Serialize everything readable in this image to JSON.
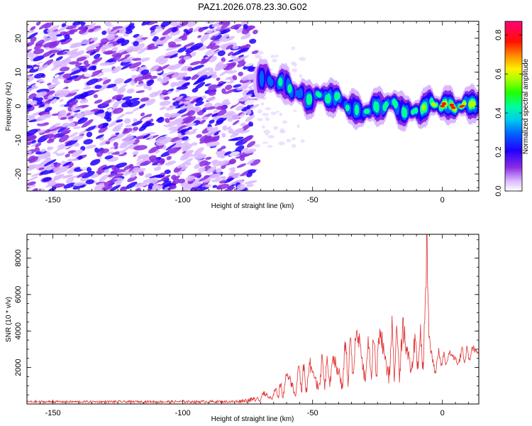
{
  "figure_title": "PAZ1.2026.078.23.30.G02",
  "chart_data": [
    {
      "type": "heatmap",
      "title": "PAZ1.2026.078.23.30.G02",
      "xlabel": "Height of straight line (km)",
      "ylabel": "Frequency (Hz)",
      "xlim": [
        -160,
        14
      ],
      "ylim": [
        -25,
        25
      ],
      "x_ticks": [
        -150,
        -100,
        -50,
        0
      ],
      "y_ticks": [
        -20,
        -10,
        0,
        10,
        20
      ],
      "colorbar": {
        "label": "Normalized spectral amplitude",
        "range": [
          0,
          0.87
        ],
        "ticks": [
          "0.0",
          "0.2",
          "0.4",
          "0.6",
          "0.8"
        ],
        "colormap": "white-violet-blue-cyan-green-yellow-red-magenta"
      },
      "noise_region_x": [
        -160,
        -72
      ],
      "signal_ridge": {
        "x": [
          -72,
          -68,
          -64,
          -60,
          -56,
          -52,
          -48,
          -44,
          -40,
          -36,
          -32,
          -28,
          -24,
          -20,
          -16,
          -12,
          -8,
          -4,
          0,
          4,
          8,
          12,
          14
        ],
        "freq": [
          8,
          8,
          7,
          6,
          4,
          2,
          3,
          3,
          2,
          0,
          -2,
          -1,
          0,
          1,
          -1,
          -2,
          -1,
          1,
          0,
          0,
          0,
          1,
          1
        ],
        "amplitude": [
          0.3,
          0.35,
          0.4,
          0.45,
          0.4,
          0.45,
          0.5,
          0.55,
          0.5,
          0.45,
          0.45,
          0.5,
          0.5,
          0.55,
          0.5,
          0.5,
          0.55,
          0.6,
          0.75,
          0.85,
          0.8,
          0.65,
          0.6
        ]
      }
    },
    {
      "type": "line",
      "xlabel": "Height of straight line (km)",
      "ylabel": "SNR (10 * v/v)",
      "xlim": [
        -160,
        14
      ],
      "ylim": [
        0,
        9300
      ],
      "x_ticks": [
        -150,
        -100,
        -50,
        0
      ],
      "y_ticks": [
        2000,
        4000,
        6000,
        8000
      ],
      "color": "#e03030",
      "envelope": {
        "x": [
          -160,
          -80,
          -72,
          -64,
          -60,
          -56,
          -52,
          -48,
          -44,
          -40,
          -36,
          -32,
          -28,
          -24,
          -20,
          -16,
          -12,
          -8,
          -6,
          -5,
          -3,
          0,
          4,
          8,
          12,
          14
        ],
        "low": [
          60,
          60,
          100,
          200,
          300,
          400,
          500,
          600,
          700,
          700,
          800,
          900,
          1000,
          1000,
          1000,
          1200,
          1500,
          1500,
          2000,
          2200,
          1500,
          2000,
          2000,
          2200,
          2400,
          2600
        ],
        "high": [
          180,
          200,
          400,
          1200,
          2000,
          2800,
          2500,
          2900,
          3200,
          3500,
          4500,
          5500,
          4500,
          5000,
          5300,
          5200,
          5000,
          4500,
          9300,
          4600,
          3600,
          3000,
          3200,
          3300,
          3400,
          3200
        ]
      }
    }
  ]
}
